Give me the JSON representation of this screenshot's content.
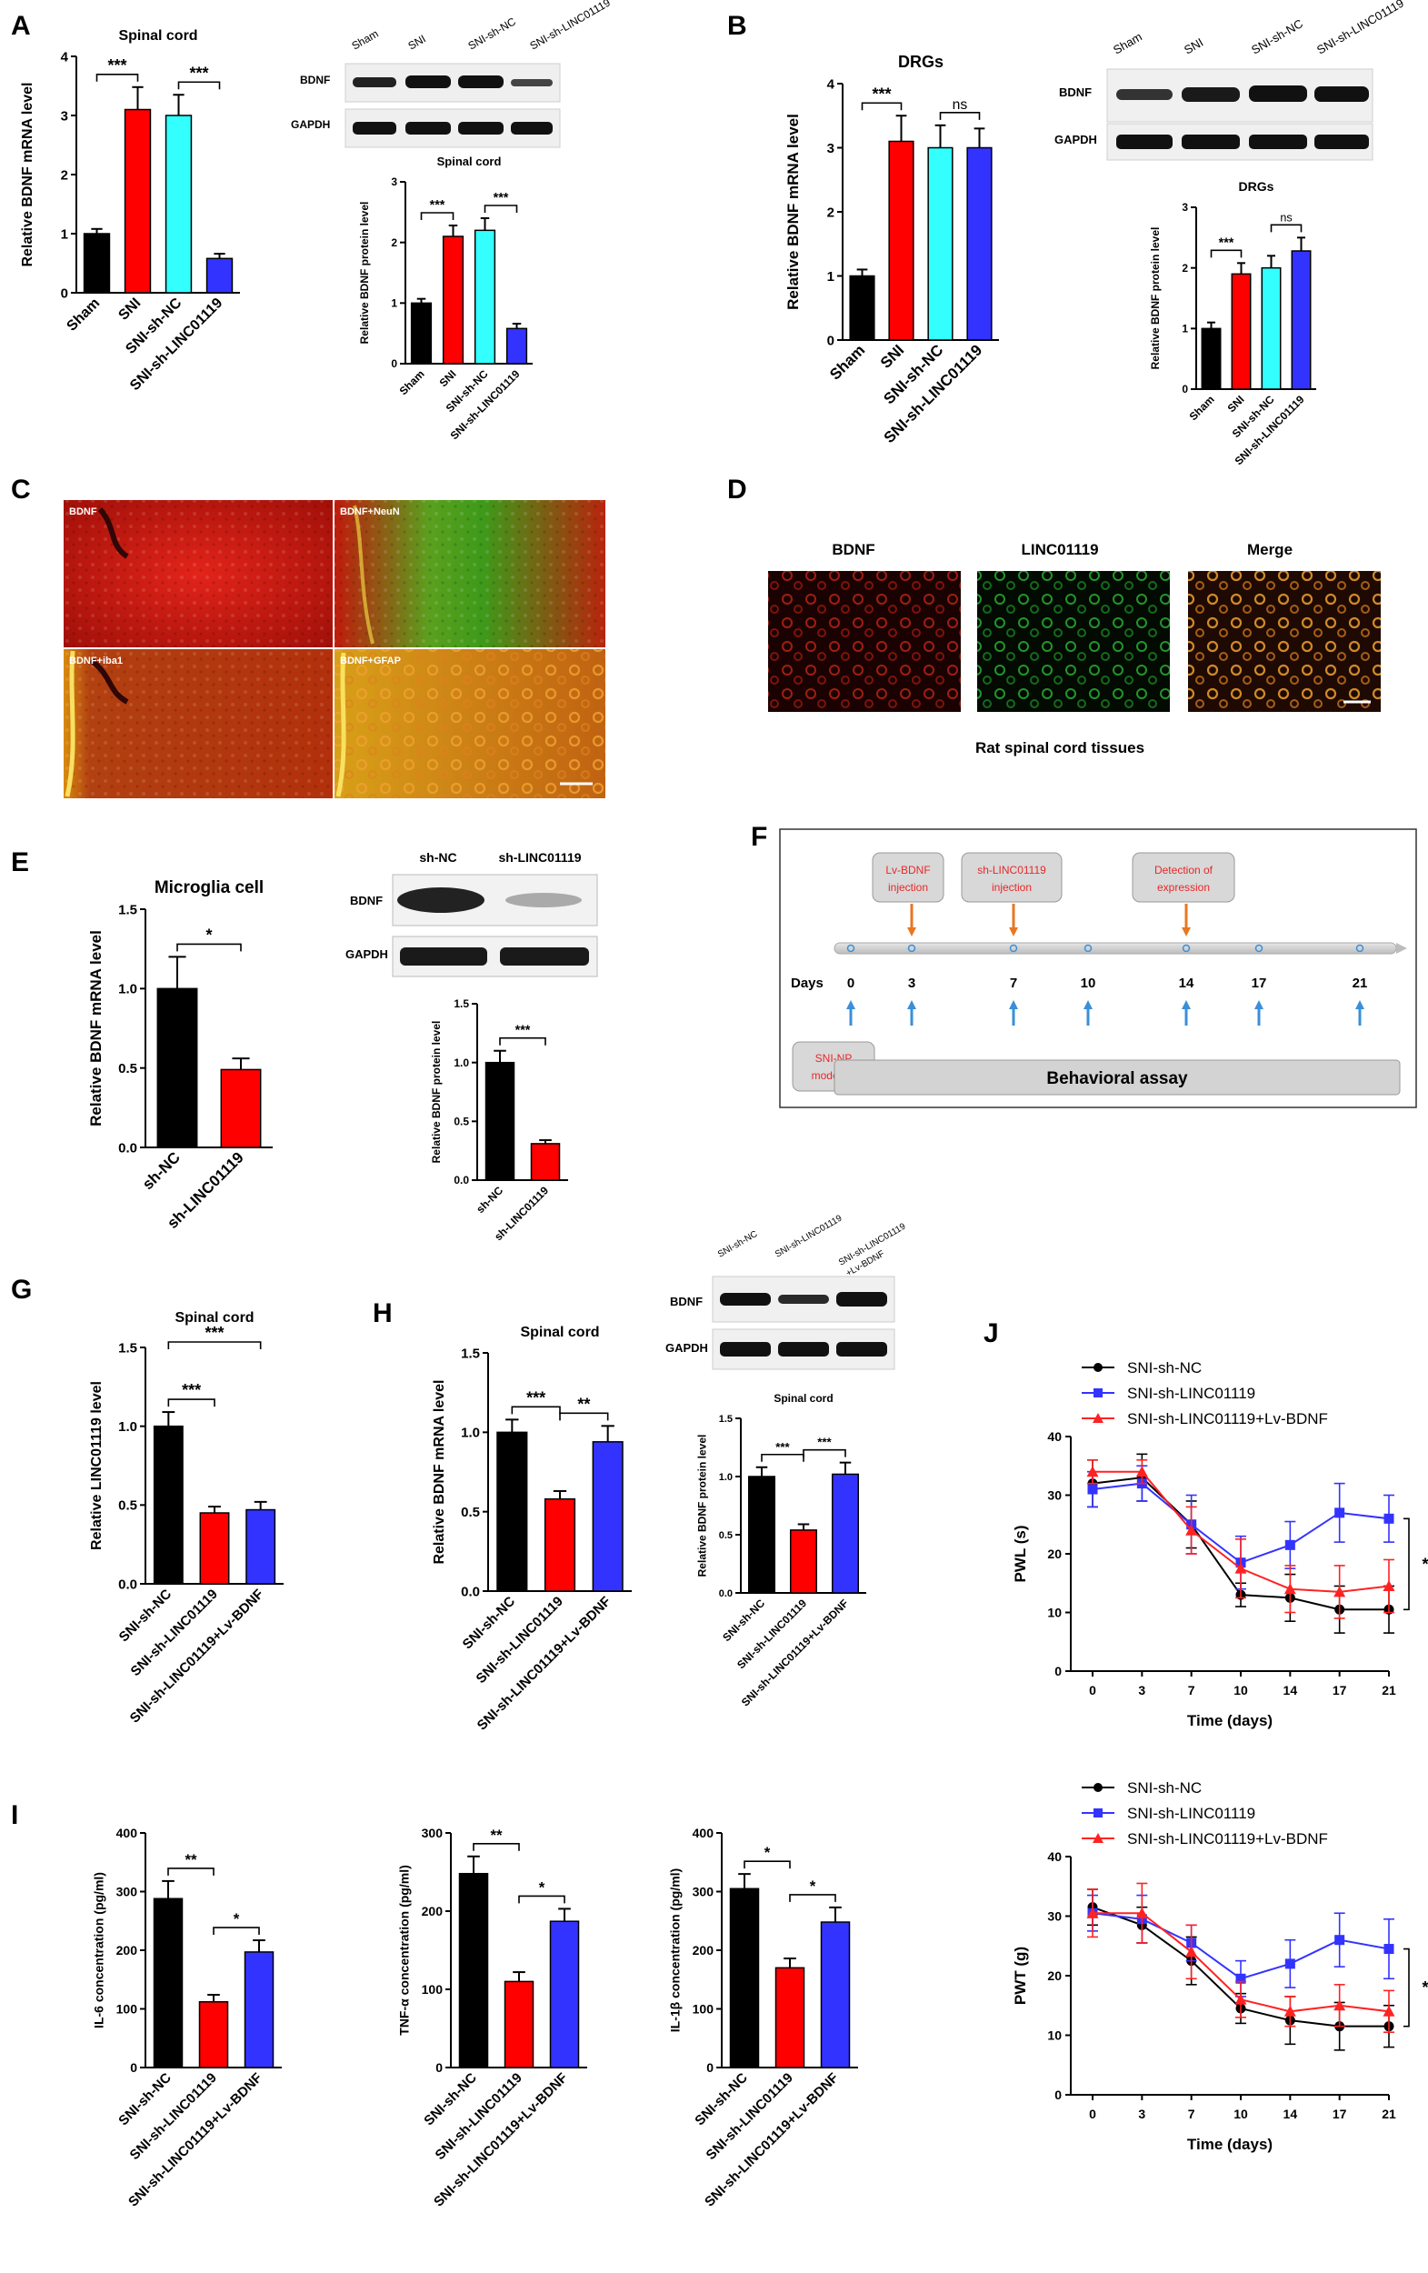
{
  "panel_labels": {
    "A": "A",
    "B": "B",
    "C": "C",
    "D": "D",
    "E": "E",
    "F": "F",
    "G": "G",
    "H": "H",
    "I": "I",
    "J": "J"
  },
  "colors": {
    "black": "#000000",
    "red": "#ff0000",
    "cyan": "#33ffff",
    "blue": "#3333ff",
    "orange": "#e87722",
    "stripe_blue": "#3a8fd8",
    "label_red": "#e8282a"
  },
  "blots": {
    "A": {
      "lanes": [
        "Sham",
        "SNI",
        "SNI-sh-NC",
        "SNI-sh-LINC01119"
      ],
      "rows": [
        "BDNF",
        "GAPDH"
      ]
    },
    "B": {
      "lanes": [
        "Sham",
        "SNI",
        "SNI-sh-NC",
        "SNI-sh-LINC01119"
      ],
      "rows": [
        "BDNF",
        "GAPDH"
      ]
    },
    "E": {
      "lanes": [
        "sh-NC",
        "sh-LINC01119"
      ],
      "rows": [
        "BDNF",
        "GAPDH"
      ]
    },
    "H": {
      "lanes": [
        "SNI-sh-NC",
        "SNI-sh-LINC01119",
        "SNI-sh-LINC01119 +Lv-BDNF"
      ],
      "rows": [
        "BDNF",
        "GAPDH"
      ]
    }
  },
  "micrograph_C": {
    "tiles": [
      "BDNF",
      "BDNF+NeuN",
      "BDNF+iba1",
      "BDNF+GFAP"
    ]
  },
  "micrograph_D": {
    "tiles": [
      "BDNF",
      "LINC01119",
      "Merge"
    ],
    "caption": "Rat spinal cord tissues"
  },
  "timeline": {
    "boxes": [
      "Lv-BDNF injection",
      "sh-LINC01119 injection",
      "Detection of expression"
    ],
    "days_label": "Days",
    "days": [
      "0",
      "3",
      "7",
      "10",
      "14",
      "17",
      "21"
    ],
    "start_box": "SNI-NP modeling",
    "assay": "Behavioral assay"
  },
  "chart_data": [
    {
      "id": "A_mrna",
      "type": "bar",
      "title": "Spinal cord",
      "ylabel": "Relative BDNF mRNA level",
      "ylim": [
        0,
        4
      ],
      "yticks": [
        "0",
        "1",
        "2",
        "3",
        "4"
      ],
      "categories": [
        "Sham",
        "SNI",
        "SNI-sh-NC",
        "SNI-sh-LINC01119"
      ],
      "values": [
        1.0,
        3.1,
        3.0,
        0.58
      ],
      "errors": [
        0.08,
        0.38,
        0.35,
        0.08
      ],
      "sig": [
        {
          "a": 0,
          "b": 1,
          "text": "***"
        },
        {
          "a": 2,
          "b": 3,
          "text": "***"
        }
      ]
    },
    {
      "id": "A_prot",
      "type": "bar",
      "title": "Spinal cord",
      "ylabel": "Relative BDNF protein level",
      "ylim": [
        0,
        3
      ],
      "yticks": [
        "0",
        "1",
        "2",
        "3"
      ],
      "categories": [
        "Sham",
        "SNI",
        "SNI-sh-NC",
        "SNI-sh-LINC01119"
      ],
      "values": [
        1.0,
        2.1,
        2.2,
        0.58
      ],
      "errors": [
        0.07,
        0.18,
        0.2,
        0.08
      ],
      "sig": [
        {
          "a": 0,
          "b": 1,
          "text": "***"
        },
        {
          "a": 2,
          "b": 3,
          "text": "***"
        }
      ]
    },
    {
      "id": "B_mrna",
      "type": "bar",
      "title": "DRGs",
      "ylabel": "Relative BDNF mRNA level",
      "ylim": [
        0,
        4
      ],
      "yticks": [
        "0",
        "1",
        "2",
        "3",
        "4"
      ],
      "categories": [
        "Sham",
        "SNI",
        "SNI-sh-NC",
        "SNI-sh-LINC01119"
      ],
      "values": [
        1.0,
        3.1,
        3.0,
        3.0
      ],
      "errors": [
        0.1,
        0.4,
        0.35,
        0.3
      ],
      "sig": [
        {
          "a": 0,
          "b": 1,
          "text": "***"
        },
        {
          "a": 2,
          "b": 3,
          "text": "ns"
        }
      ]
    },
    {
      "id": "B_prot",
      "type": "bar",
      "title": "DRGs",
      "ylabel": "Relative BDNF protein level",
      "ylim": [
        0,
        3
      ],
      "yticks": [
        "0",
        "1",
        "2",
        "3"
      ],
      "categories": [
        "Sham",
        "SNI",
        "SNI-sh-NC",
        "SNI-sh-LINC01119"
      ],
      "values": [
        1.0,
        1.9,
        2.0,
        2.28
      ],
      "errors": [
        0.1,
        0.18,
        0.2,
        0.22
      ],
      "sig": [
        {
          "a": 0,
          "b": 1,
          "text": "***"
        },
        {
          "a": 2,
          "b": 3,
          "text": "ns"
        }
      ]
    },
    {
      "id": "E_mrna",
      "type": "bar",
      "title": "Microglia cell",
      "ylabel": "Relative BDNF mRNA level",
      "ylim": [
        0,
        1.5
      ],
      "yticks": [
        "0.0",
        "0.5",
        "1.0",
        "1.5"
      ],
      "categories": [
        "sh-NC",
        "sh-LINC01119"
      ],
      "values": [
        1.0,
        0.49
      ],
      "errors": [
        0.2,
        0.07
      ],
      "sig": [
        {
          "a": 0,
          "b": 1,
          "text": "*"
        }
      ]
    },
    {
      "id": "E_prot",
      "type": "bar",
      "title": "",
      "ylabel": "Relative BDNF protein level",
      "ylim": [
        0,
        1.5
      ],
      "yticks": [
        "0.0",
        "0.5",
        "1.0",
        "1.5"
      ],
      "categories": [
        "sh-NC",
        "sh-LINC01119"
      ],
      "values": [
        1.0,
        0.31
      ],
      "errors": [
        0.1,
        0.03
      ],
      "sig": [
        {
          "a": 0,
          "b": 1,
          "text": "***"
        }
      ]
    },
    {
      "id": "G",
      "type": "bar",
      "title": "Spinal cord",
      "ylabel": "Relative LINC01119 level",
      "ylim": [
        0,
        1.5
      ],
      "yticks": [
        "0.0",
        "0.5",
        "1.0",
        "1.5"
      ],
      "categories": [
        "SNI-sh-NC",
        "SNI-sh-LINC01119",
        "SNI-sh-LINC01119+Lv-BDNF"
      ],
      "values": [
        1.0,
        0.45,
        0.47
      ],
      "errors": [
        0.09,
        0.04,
        0.05
      ],
      "sig": [
        {
          "a": 0,
          "b": 1,
          "text": "***"
        },
        {
          "a": 0,
          "b": 2,
          "text": "***"
        }
      ]
    },
    {
      "id": "H_mrna",
      "type": "bar",
      "title": "Spinal cord",
      "ylabel": "Relative BDNF mRNA level",
      "ylim": [
        0,
        1.5
      ],
      "yticks": [
        "0.0",
        "0.5",
        "1.0",
        "1.5"
      ],
      "categories": [
        "SNI-sh-NC",
        "SNI-sh-LINC01119",
        "SNI-sh-LINC01119+Lv-BDNF"
      ],
      "values": [
        1.0,
        0.58,
        0.94
      ],
      "errors": [
        0.08,
        0.05,
        0.1
      ],
      "sig": [
        {
          "a": 0,
          "b": 1,
          "text": "***"
        },
        {
          "a": 1,
          "b": 2,
          "text": "**"
        }
      ]
    },
    {
      "id": "H_prot",
      "type": "bar",
      "title": "Spinal cord",
      "ylabel": "Relative BDNF protein level",
      "ylim": [
        0,
        1.5
      ],
      "yticks": [
        "0.0",
        "0.5",
        "1.0",
        "1.5"
      ],
      "categories": [
        "SNI-sh-NC",
        "SNI-sh-LINC01119",
        "SNI-sh-LINC01119+Lv-BDNF"
      ],
      "values": [
        1.0,
        0.54,
        1.02
      ],
      "errors": [
        0.08,
        0.05,
        0.1
      ],
      "sig": [
        {
          "a": 0,
          "b": 1,
          "text": "***"
        },
        {
          "a": 1,
          "b": 2,
          "text": "***"
        }
      ]
    },
    {
      "id": "I_il6",
      "type": "bar",
      "title": "",
      "ylabel": "IL-6 concentration (pg/ml)",
      "ylim": [
        0,
        400
      ],
      "yticks": [
        "0",
        "100",
        "200",
        "300",
        "400"
      ],
      "categories": [
        "SNI-sh-NC",
        "SNI-sh-LINC01119",
        "SNI-sh-LINC01119+Lv-BDNF"
      ],
      "values": [
        288,
        112,
        197
      ],
      "errors": [
        30,
        12,
        20
      ],
      "sig": [
        {
          "a": 0,
          "b": 1,
          "text": "**"
        },
        {
          "a": 1,
          "b": 2,
          "text": "*"
        }
      ]
    },
    {
      "id": "I_tnf",
      "type": "bar",
      "title": "",
      "ylabel": "TNF-α concentration (pg/ml)",
      "ylim": [
        0,
        300
      ],
      "yticks": [
        "0",
        "100",
        "200",
        "300"
      ],
      "categories": [
        "SNI-sh-NC",
        "SNI-sh-LINC01119",
        "SNI-sh-LINC01119+Lv-BDNF"
      ],
      "values": [
        248,
        110,
        187
      ],
      "errors": [
        22,
        12,
        16
      ],
      "sig": [
        {
          "a": 0,
          "b": 1,
          "text": "**"
        },
        {
          "a": 1,
          "b": 2,
          "text": "*"
        }
      ]
    },
    {
      "id": "I_il1b",
      "type": "bar",
      "title": "",
      "ylabel": "IL-1β concentration (pg/ml)",
      "ylim": [
        0,
        400
      ],
      "yticks": [
        "0",
        "100",
        "200",
        "300",
        "400"
      ],
      "categories": [
        "SNI-sh-NC",
        "SNI-sh-LINC01119",
        "SNI-sh-LINC01119+Lv-BDNF"
      ],
      "values": [
        305,
        170,
        248
      ],
      "errors": [
        25,
        16,
        25
      ],
      "sig": [
        {
          "a": 0,
          "b": 1,
          "text": "*"
        },
        {
          "a": 1,
          "b": 2,
          "text": "*"
        }
      ]
    },
    {
      "id": "J_pwl",
      "type": "line",
      "title": "",
      "xlabel": "Time (days)",
      "ylabel": "PWL (s)",
      "ylim": [
        0,
        40
      ],
      "yticks": [
        "0",
        "10",
        "20",
        "30",
        "40"
      ],
      "x": [
        0,
        3,
        7,
        10,
        14,
        17,
        21
      ],
      "xticks": [
        "0",
        "3",
        "7",
        "10",
        "14",
        "17",
        "21"
      ],
      "sig_text": "*",
      "series": [
        {
          "name": "SNI-sh-NC",
          "color": "#000000",
          "marker": "circle",
          "values": [
            32,
            33,
            25,
            13,
            12.5,
            10.5,
            10.5
          ],
          "errors": [
            4,
            4,
            4,
            2,
            4,
            4,
            4
          ]
        },
        {
          "name": "SNI-sh-LINC01119",
          "color": "#3333ff",
          "marker": "square",
          "values": [
            31,
            32,
            25,
            18.5,
            21.5,
            27,
            26
          ],
          "errors": [
            3,
            3,
            5,
            4.5,
            4,
            5,
            4
          ]
        },
        {
          "name": "SNI-sh-LINC01119+Lv-BDNF",
          "color": "#ff2222",
          "marker": "triangle",
          "values": [
            34,
            34,
            24,
            17.5,
            14,
            13.5,
            14.5
          ],
          "errors": [
            2,
            2,
            4,
            5,
            4,
            4.5,
            4.5
          ]
        }
      ]
    },
    {
      "id": "J_pwt",
      "type": "line",
      "title": "",
      "xlabel": "Time (days)",
      "ylabel": "PWT (g)",
      "ylim": [
        0,
        40
      ],
      "yticks": [
        "0",
        "10",
        "20",
        "30",
        "40"
      ],
      "x": [
        0,
        3,
        7,
        10,
        14,
        17,
        21
      ],
      "xticks": [
        "0",
        "3",
        "7",
        "10",
        "14",
        "17",
        "21"
      ],
      "sig_text": "*",
      "series": [
        {
          "name": "SNI-sh-NC",
          "color": "#000000",
          "marker": "circle",
          "values": [
            31.5,
            28.5,
            22.5,
            14.5,
            12.5,
            11.5,
            11.5
          ],
          "errors": [
            3,
            3,
            4,
            2.5,
            4,
            4,
            3.5
          ]
        },
        {
          "name": "SNI-sh-LINC01119",
          "color": "#3333ff",
          "marker": "square",
          "values": [
            30.5,
            29.5,
            25.5,
            19.5,
            22,
            26,
            24.5
          ],
          "errors": [
            3,
            4,
            3,
            3,
            4,
            4.5,
            5
          ]
        },
        {
          "name": "SNI-sh-LINC01119+Lv-BDNF",
          "color": "#ff2222",
          "marker": "triangle",
          "values": [
            30.5,
            30.5,
            24,
            16,
            14,
            15,
            14
          ],
          "errors": [
            4,
            5,
            4.5,
            3,
            2.5,
            3.5,
            3.5
          ]
        }
      ]
    }
  ]
}
